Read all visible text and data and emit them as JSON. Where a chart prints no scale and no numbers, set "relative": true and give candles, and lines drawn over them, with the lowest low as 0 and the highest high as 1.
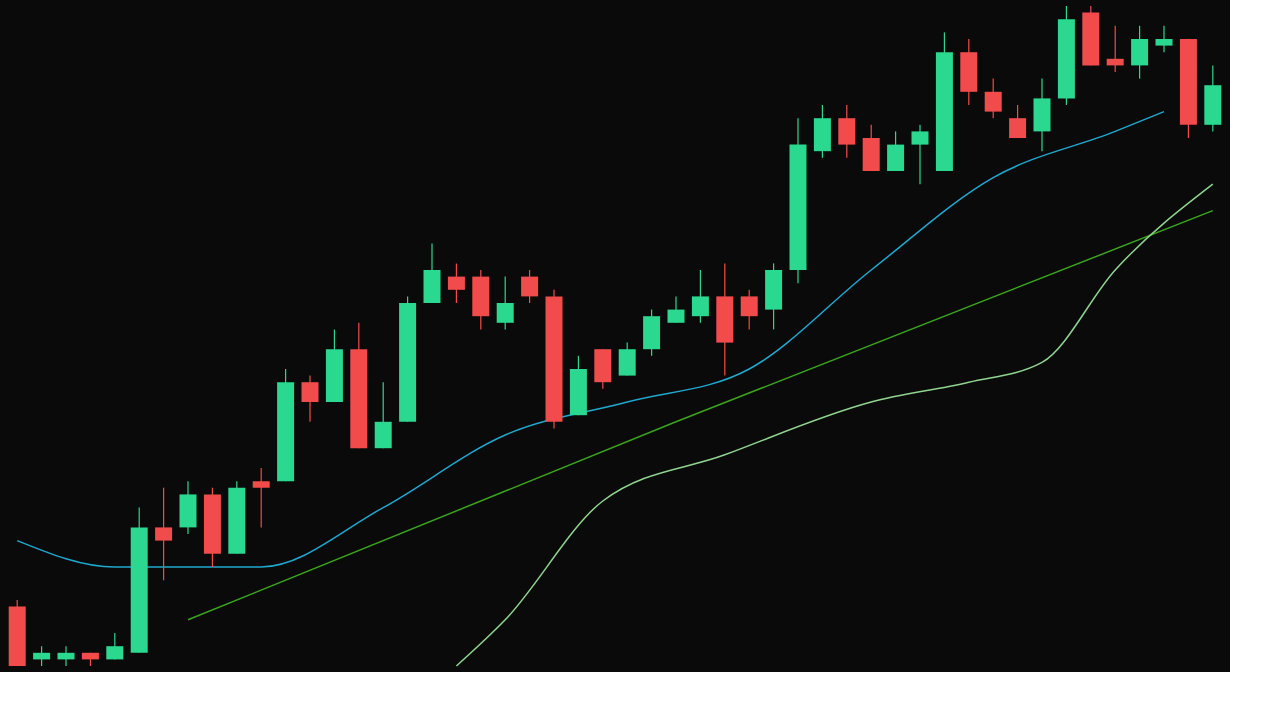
{
  "chart_data": {
    "type": "candlestick",
    "relative": true,
    "categories": [
      null,
      null,
      null,
      null,
      null,
      null,
      null,
      null,
      null,
      null,
      null,
      null,
      null,
      null,
      null,
      null,
      null,
      null,
      null,
      null,
      null,
      null,
      null,
      null,
      null,
      null,
      null,
      null,
      null,
      null,
      null,
      null,
      null,
      null,
      null,
      null,
      null,
      null,
      null,
      null,
      null,
      null,
      null,
      null,
      null,
      null,
      null,
      null,
      null,
      null
    ],
    "ohlc": [
      [
        0.09,
        0.1,
        0,
        0
      ],
      [
        0.01,
        0.03,
        0,
        0.02
      ],
      [
        0.01,
        0.03,
        0,
        0.02
      ],
      [
        0.02,
        0.02,
        0,
        0.01
      ],
      [
        0.01,
        0.05,
        0.01,
        0.03
      ],
      [
        0.02,
        0.24,
        0.02,
        0.21
      ],
      [
        0.21,
        0.27,
        0.13,
        0.19
      ],
      [
        0.21,
        0.28,
        0.2,
        0.26
      ],
      [
        0.26,
        0.27,
        0.15,
        0.17
      ],
      [
        0.17,
        0.28,
        0.17,
        0.27
      ],
      [
        0.28,
        0.3,
        0.21,
        0.27
      ],
      [
        0.28,
        0.45,
        0.28,
        0.43
      ],
      [
        0.43,
        0.44,
        0.37,
        0.4
      ],
      [
        0.4,
        0.51,
        0.4,
        0.48
      ],
      [
        0.48,
        0.52,
        0.33,
        0.33
      ],
      [
        0.33,
        0.43,
        0.33,
        0.37
      ],
      [
        0.37,
        0.56,
        0.37,
        0.55
      ],
      [
        0.55,
        0.64,
        0.55,
        0.6
      ],
      [
        0.59,
        0.61,
        0.55,
        0.57
      ],
      [
        0.59,
        0.6,
        0.51,
        0.53
      ],
      [
        0.52,
        0.59,
        0.51,
        0.55
      ],
      [
        0.59,
        0.6,
        0.55,
        0.56
      ],
      [
        0.56,
        0.57,
        0.36,
        0.37
      ],
      [
        0.38,
        0.47,
        0.38,
        0.45
      ],
      [
        0.48,
        0.48,
        0.42,
        0.43
      ],
      [
        0.44,
        0.49,
        0.44,
        0.48
      ],
      [
        0.48,
        0.54,
        0.47,
        0.53
      ],
      [
        0.52,
        0.56,
        0.52,
        0.54
      ],
      [
        0.53,
        0.6,
        0.52,
        0.56
      ],
      [
        0.56,
        0.61,
        0.44,
        0.49
      ],
      [
        0.56,
        0.57,
        0.51,
        0.53
      ],
      [
        0.54,
        0.61,
        0.51,
        0.6
      ],
      [
        0.6,
        0.83,
        0.58,
        0.79
      ],
      [
        0.78,
        0.85,
        0.77,
        0.83
      ],
      [
        0.83,
        0.85,
        0.77,
        0.79
      ],
      [
        0.8,
        0.82,
        0.75,
        0.75
      ],
      [
        0.75,
        0.81,
        0.75,
        0.79
      ],
      [
        0.79,
        0.82,
        0.73,
        0.81
      ],
      [
        0.75,
        0.96,
        0.75,
        0.93
      ],
      [
        0.93,
        0.95,
        0.85,
        0.87
      ],
      [
        0.87,
        0.89,
        0.83,
        0.84
      ],
      [
        0.83,
        0.85,
        0.8,
        0.8
      ],
      [
        0.81,
        0.89,
        0.78,
        0.86
      ],
      [
        0.86,
        1,
        0.85,
        0.98
      ],
      [
        0.99,
        1,
        0.91,
        0.91
      ],
      [
        0.92,
        0.97,
        0.9,
        0.91
      ],
      [
        0.91,
        0.97,
        0.89,
        0.95
      ],
      [
        0.94,
        0.97,
        0.93,
        0.95
      ],
      [
        0.95,
        0.95,
        0.8,
        0.82
      ],
      [
        0.82,
        0.91,
        0.81,
        0.88
      ]
    ],
    "colors": [
      "#f24b4b",
      "#2bd88f",
      "#2bd88f",
      "#f24b4b",
      "#2bd88f",
      "#2bd88f",
      "#f24b4b",
      "#2bd88f",
      "#f24b4b",
      "#2bd88f",
      "#f24b4b",
      "#2bd88f",
      "#f24b4b",
      "#2bd88f",
      "#f24b4b",
      "#2bd88f",
      "#2bd88f",
      "#2bd88f",
      "#f24b4b",
      "#f24b4b",
      "#2bd88f",
      "#f24b4b",
      "#f24b4b",
      "#2bd88f",
      "#f24b4b",
      "#2bd88f",
      "#2bd88f",
      "#2bd88f",
      "#2bd88f",
      "#f24b4b",
      "#f24b4b",
      "#2bd88f",
      "#2bd88f",
      "#2bd88f",
      "#f24b4b",
      "#f24b4b",
      "#2bd88f",
      "#2bd88f",
      "#2bd88f",
      "#f24b4b",
      "#f24b4b",
      "#f24b4b",
      "#2bd88f",
      "#2bd88f",
      "#f24b4b",
      "#f24b4b",
      "#2bd88f",
      "#2bd88f",
      "#f24b4b",
      "#2bd88f"
    ],
    "series": [
      {
        "type": "line",
        "color": "#1fa8d0",
        "values": [
          0.19,
          null,
          null,
          null,
          0.15,
          null,
          null,
          null,
          null,
          null,
          0.15,
          null,
          null,
          null,
          null,
          0.24,
          null,
          null,
          null,
          null,
          0.35,
          null,
          null,
          null,
          null,
          0.4,
          null,
          null,
          null,
          null,
          0.45,
          null,
          null,
          null,
          null,
          0.6,
          null,
          null,
          null,
          null,
          0.74,
          null,
          null,
          null,
          null,
          0.81,
          null,
          0.84,
          null,
          null
        ]
      },
      {
        "type": "line",
        "color": "#3aa51c",
        "values": [
          null,
          null,
          null,
          null,
          null,
          null,
          null,
          0.07,
          null,
          null,
          null,
          null,
          null,
          null,
          null,
          null,
          null,
          null,
          null,
          null,
          null,
          null,
          null,
          null,
          null,
          null,
          null,
          0.37,
          null,
          null,
          null,
          null,
          null,
          null,
          null,
          null,
          null,
          null,
          null,
          null,
          null,
          null,
          null,
          null,
          null,
          null,
          null,
          null,
          null,
          0.69
        ]
      },
      {
        "type": "line",
        "color": "#8fd48f",
        "values": [
          null,
          null,
          null,
          null,
          null,
          null,
          null,
          null,
          null,
          null,
          null,
          null,
          null,
          null,
          null,
          null,
          null,
          null,
          0,
          null,
          0.07,
          null,
          null,
          null,
          0.25,
          null,
          null,
          null,
          null,
          0.32,
          null,
          null,
          null,
          null,
          null,
          0.4,
          null,
          null,
          null,
          0.43,
          null,
          null,
          0.46,
          null,
          null,
          0.6,
          null,
          null,
          null,
          0.73
        ]
      }
    ]
  }
}
